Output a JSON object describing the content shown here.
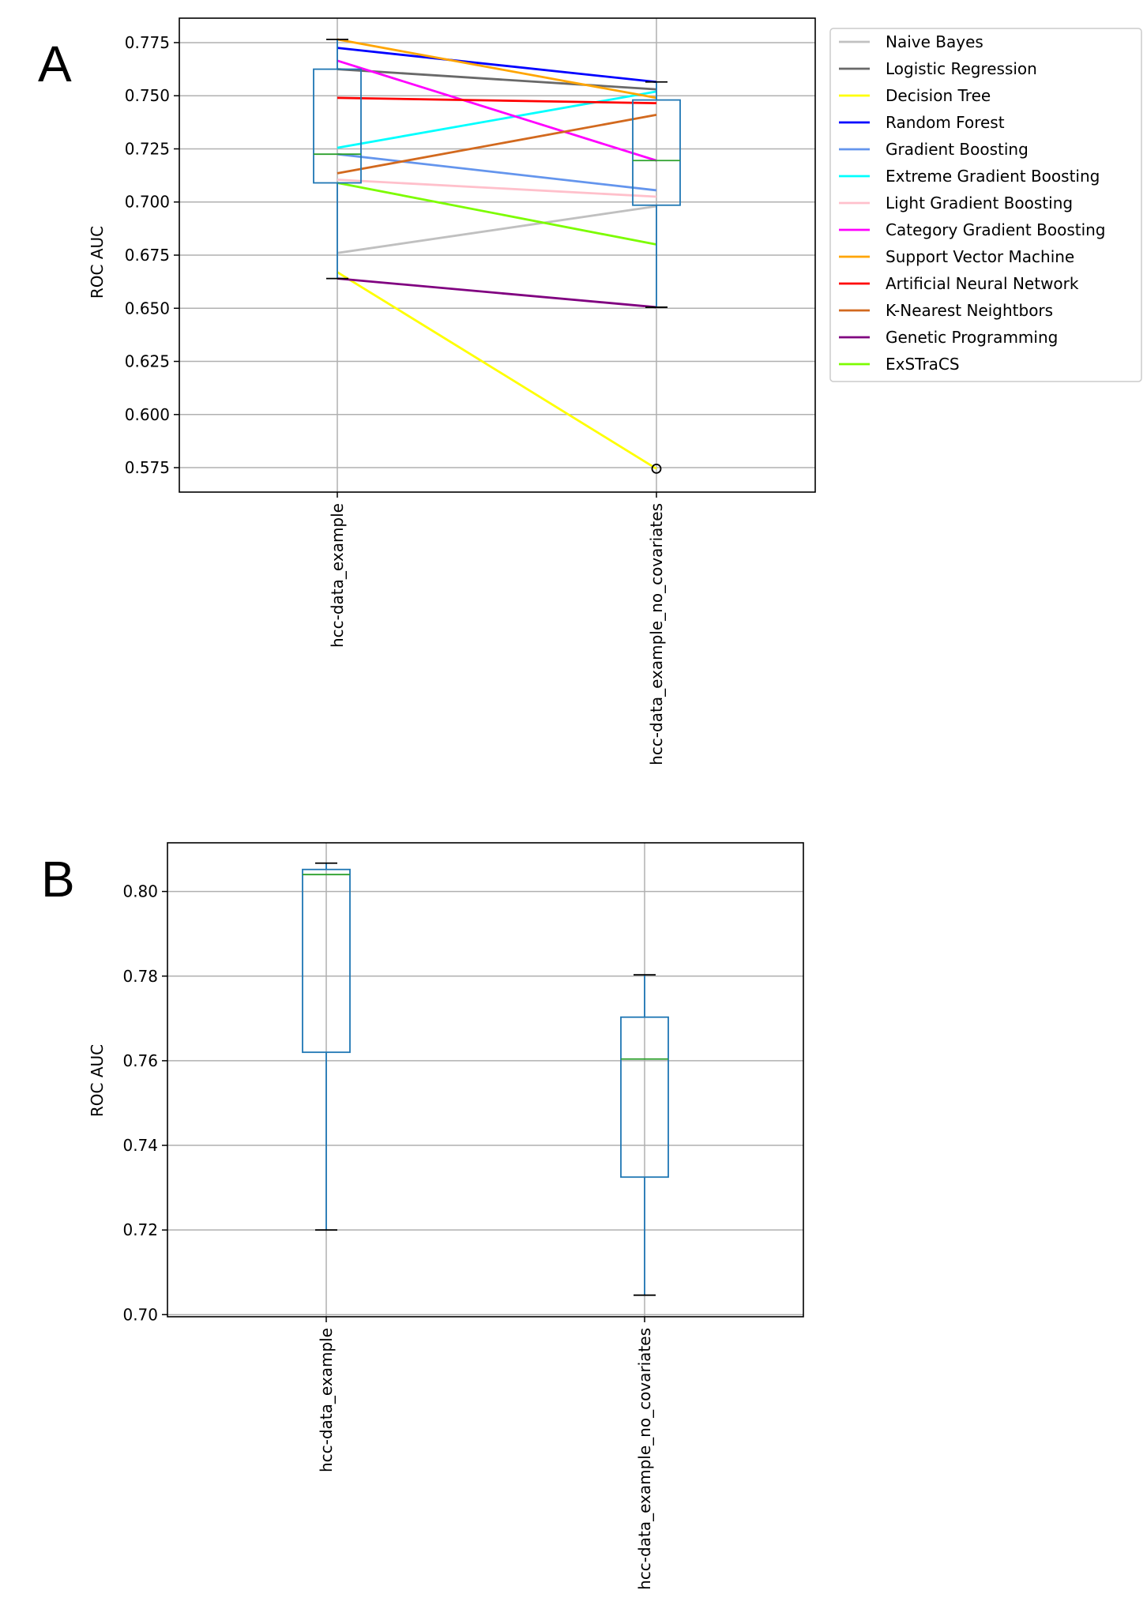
{
  "panels": {
    "a": {
      "letter": "A"
    },
    "b": {
      "letter": "B"
    }
  },
  "chart_data": [
    {
      "type": "box",
      "ylabel": "ROC AUC",
      "categories": [
        "hcc-data_example",
        "hcc-data_example_no_covariates"
      ],
      "ylim": [
        0.5635,
        0.7865
      ],
      "yticks": [
        0.575,
        0.6,
        0.625,
        0.65,
        0.675,
        0.7,
        0.725,
        0.75,
        0.775
      ],
      "ytick_labels": [
        "0.575",
        "0.600",
        "0.625",
        "0.650",
        "0.675",
        "0.700",
        "0.725",
        "0.750",
        "0.775"
      ],
      "grid": true,
      "legend_position": "outside right, top",
      "box_color": "#1f77b4",
      "median_color": "#2ca02c",
      "boxes": [
        {
          "q1": 0.709,
          "median": 0.7225,
          "q3": 0.7625,
          "whisker_low": 0.664,
          "whisker_high": 0.7765,
          "fliers": []
        },
        {
          "q1": 0.6985,
          "median": 0.7195,
          "q3": 0.748,
          "whisker_low": 0.6505,
          "whisker_high": 0.7565,
          "fliers": [
            0.5745
          ]
        }
      ],
      "series": [
        {
          "name": "Naive Bayes",
          "color": "#c0c0c0",
          "values": [
            0.676,
            0.698
          ]
        },
        {
          "name": "Logistic Regression",
          "color": "#696969",
          "values": [
            0.7625,
            0.753
          ]
        },
        {
          "name": "Decision Tree",
          "color": "#ffff00",
          "values": [
            0.667,
            0.5745
          ]
        },
        {
          "name": "Random Forest",
          "color": "#0000ff",
          "values": [
            0.7725,
            0.7565
          ]
        },
        {
          "name": "Gradient Boosting",
          "color": "#6495ed",
          "values": [
            0.7225,
            0.7055
          ]
        },
        {
          "name": "Extreme Gradient Boosting",
          "color": "#00ffff",
          "values": [
            0.7255,
            0.752
          ]
        },
        {
          "name": "Light Gradient Boosting",
          "color": "#ffc0cb",
          "values": [
            0.7105,
            0.7025
          ]
        },
        {
          "name": "Category Gradient Boosting",
          "color": "#ff00ff",
          "values": [
            0.7665,
            0.7195
          ]
        },
        {
          "name": "Support Vector Machine",
          "color": "#ffa500",
          "values": [
            0.7765,
            0.749
          ]
        },
        {
          "name": "Artificial Neural Network",
          "color": "#ff0000",
          "values": [
            0.749,
            0.7465
          ]
        },
        {
          "name": "K-Nearest Neightbors",
          "color": "#d2691e",
          "values": [
            0.7135,
            0.741
          ]
        },
        {
          "name": "Genetic Programming",
          "color": "#800080",
          "values": [
            0.664,
            0.6505
          ]
        },
        {
          "name": "ExSTraCS",
          "color": "#7cfc00",
          "values": [
            0.709,
            0.68
          ]
        }
      ]
    },
    {
      "type": "box",
      "ylabel": "ROC AUC",
      "categories": [
        "hcc-data_example",
        "hcc-data_example_no_covariates"
      ],
      "ylim": [
        0.6995,
        0.8115
      ],
      "yticks": [
        0.7,
        0.72,
        0.74,
        0.76,
        0.78,
        0.8
      ],
      "ytick_labels": [
        "0.70",
        "0.72",
        "0.74",
        "0.76",
        "0.78",
        "0.80"
      ],
      "grid": true,
      "box_color": "#1f77b4",
      "median_color": "#2ca02c",
      "boxes": [
        {
          "q1": 0.762,
          "median": 0.804,
          "q3": 0.8052,
          "whisker_low": 0.72,
          "whisker_high": 0.8067,
          "fliers": []
        },
        {
          "q1": 0.7325,
          "median": 0.7604,
          "q3": 0.7703,
          "whisker_low": 0.7046,
          "whisker_high": 0.7803,
          "fliers": []
        }
      ]
    }
  ]
}
